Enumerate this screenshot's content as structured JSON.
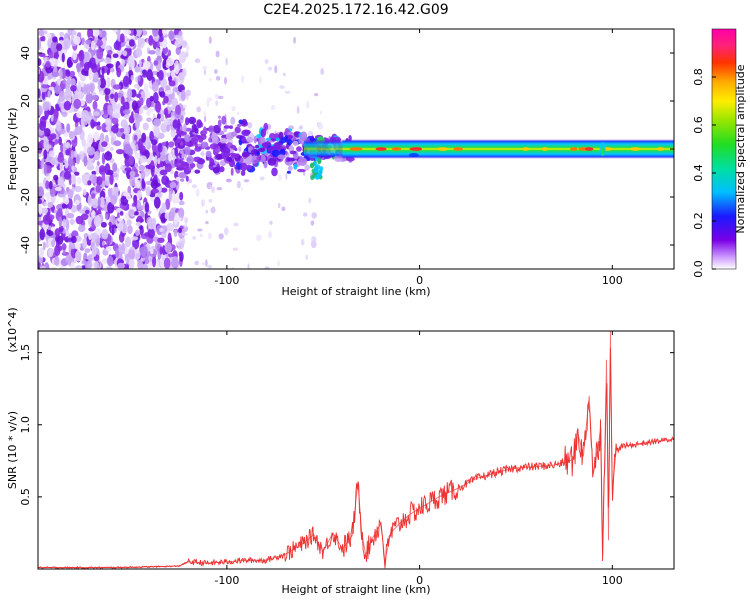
{
  "title": "C2E4.2025.172.16.42.G09",
  "colors": {
    "snr_line": "#ee3030",
    "scatter_noise": "#8a2be2",
    "background": "#ffffff"
  },
  "chart_data": [
    {
      "type": "heatmap",
      "xlabel": "Height of straight line (km)",
      "ylabel": "Frequency (Hz)",
      "xlim": [
        -198,
        132
      ],
      "ylim": [
        -50,
        50
      ],
      "x_ticks": [
        {
          "value": -100,
          "label": "-100"
        },
        {
          "value": 0,
          "label": "0"
        },
        {
          "value": 100,
          "label": "100"
        }
      ],
      "y_ticks": [
        {
          "value": -40,
          "label": "-40"
        },
        {
          "value": -20,
          "label": "-20"
        },
        {
          "value": 0,
          "label": "0"
        },
        {
          "value": 20,
          "label": "20"
        },
        {
          "value": 40,
          "label": "40"
        }
      ],
      "colorbar": {
        "label": "Normalized spectral amplitude",
        "range": [
          0,
          1
        ],
        "colormap": "rainbow (white-purple-blue-cyan-green-yellow-orange-red-magenta)",
        "ticks": [
          {
            "value": 0.0,
            "label": "0.0"
          },
          {
            "value": 0.2,
            "label": "0.2"
          },
          {
            "value": 0.4,
            "label": "0.4"
          },
          {
            "value": 0.6,
            "label": "0.6"
          },
          {
            "value": 0.8,
            "label": "0.8"
          }
        ]
      },
      "signal_band": {
        "center_hz": 0,
        "half_width_hz": [
          1,
          3.5
        ],
        "x_start_km": -60,
        "x_end_km": 132,
        "peak_amplitude": 0.9
      },
      "noise_regions": [
        {
          "x_range": [
            -198,
            -122
          ],
          "amplitude": 0.1,
          "density": "high"
        },
        {
          "x_range": [
            -122,
            -60
          ],
          "amplitude": 0.15,
          "density": "medium"
        }
      ]
    },
    {
      "type": "line",
      "xlabel": "Height of straight line (km)",
      "ylabel": "SNR (10 * v/v)",
      "y_multiplier": "(x10^4)",
      "xlim": [
        -198,
        132
      ],
      "ylim": [
        0,
        1.65
      ],
      "x_ticks": [
        {
          "value": -100,
          "label": "-100"
        },
        {
          "value": 0,
          "label": "0"
        },
        {
          "value": 100,
          "label": "100"
        }
      ],
      "y_ticks": [
        {
          "value": 0.5,
          "label": "0.5"
        },
        {
          "value": 1.0,
          "label": "1.0"
        },
        {
          "value": 1.5,
          "label": "1.5"
        }
      ],
      "series": [
        {
          "color": "#ee3030",
          "x": [
            -198,
            -180,
            -160,
            -140,
            -125,
            -120,
            -110,
            -100,
            -90,
            -80,
            -70,
            -60,
            -55,
            -50,
            -45,
            -40,
            -35,
            -32,
            -30,
            -28,
            -25,
            -20,
            -18,
            -15,
            -10,
            -5,
            0,
            10,
            20,
            30,
            40,
            50,
            60,
            70,
            75,
            80,
            82,
            85,
            88,
            90,
            92,
            94,
            95,
            96,
            97,
            98,
            99,
            100,
            102,
            105,
            110,
            115,
            120,
            125,
            132
          ],
          "y": [
            0.01,
            0.01,
            0.01,
            0.015,
            0.02,
            0.05,
            0.04,
            0.05,
            0.06,
            0.06,
            0.1,
            0.18,
            0.24,
            0.12,
            0.25,
            0.14,
            0.23,
            0.6,
            0.25,
            0.1,
            0.2,
            0.32,
            0.05,
            0.25,
            0.32,
            0.38,
            0.42,
            0.5,
            0.56,
            0.63,
            0.67,
            0.7,
            0.71,
            0.72,
            0.74,
            0.76,
            0.95,
            0.78,
            1.2,
            0.65,
            0.8,
            0.98,
            0.1,
            0.75,
            1.45,
            0.2,
            1.65,
            0.55,
            0.82,
            0.85,
            0.86,
            0.87,
            0.88,
            0.89,
            0.9
          ]
        }
      ]
    }
  ]
}
